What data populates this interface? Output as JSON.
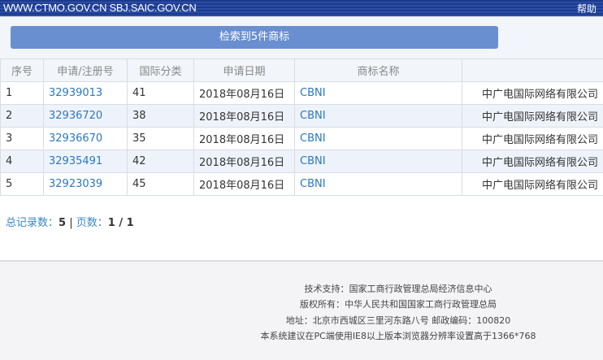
{
  "header": {
    "site": "WWW.CTMO.GOV.CN SBJ.SAIC.GOV.CN",
    "help": "帮助"
  },
  "result_button": "检索到5件商标",
  "table": {
    "columns": [
      "序号",
      "申请/注册号",
      "国际分类",
      "申请日期",
      "商标名称",
      ""
    ],
    "rows": [
      [
        "1",
        "32939013",
        "41",
        "2018年08月16日",
        "CBNI",
        "中广电国际网络有限公司"
      ],
      [
        "2",
        "32936720",
        "38",
        "2018年08月16日",
        "CBNI",
        "中广电国际网络有限公司"
      ],
      [
        "3",
        "32936670",
        "35",
        "2018年08月16日",
        "CBNI",
        "中广电国际网络有限公司"
      ],
      [
        "4",
        "32935491",
        "42",
        "2018年08月16日",
        "CBNI",
        "中广电国际网络有限公司"
      ],
      [
        "5",
        "32923039",
        "45",
        "2018年08月16日",
        "CBNI",
        "中广电国际网络有限公司"
      ]
    ]
  },
  "summary": {
    "total_label": "总记录数：",
    "total": "5",
    "sep": "|",
    "pages_label": "页数：",
    "pages": "1 / 1"
  },
  "footer": [
    "技术支持：国家工商行政管理总局经济信息中心",
    "版权所有：中华人民共和国国家工商行政管理总局",
    "地址：北京市西城区三里河东路八号  邮政编码：100820",
    "本系统建议在PC端使用IE8以上版本浏览器分辨率设置高于1366*768"
  ]
}
